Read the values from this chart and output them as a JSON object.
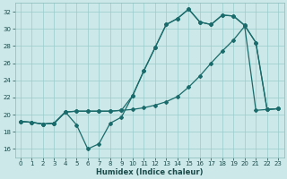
{
  "xlabel": "Humidex (Indice chaleur)",
  "bg_color": "#cce8e8",
  "grid_color": "#99cccc",
  "line_color": "#1a6b6b",
  "xlim": [
    -0.5,
    23.5
  ],
  "ylim": [
    15.0,
    33.0
  ],
  "yticks": [
    16,
    18,
    20,
    22,
    24,
    26,
    28,
    30,
    32
  ],
  "xticks": [
    0,
    1,
    2,
    3,
    4,
    5,
    6,
    7,
    8,
    9,
    10,
    11,
    12,
    13,
    14,
    15,
    16,
    17,
    18,
    19,
    20,
    21,
    22,
    23
  ],
  "line1_x": [
    0,
    1,
    2,
    3,
    4,
    5,
    6,
    7,
    8,
    9,
    10,
    11,
    12,
    13,
    14,
    15,
    16,
    17,
    18,
    19,
    20,
    21,
    22,
    23
  ],
  "line1_y": [
    19.2,
    19.1,
    18.9,
    19.0,
    20.3,
    18.8,
    16.0,
    16.6,
    19.0,
    19.7,
    22.2,
    25.1,
    27.8,
    30.5,
    31.2,
    32.3,
    30.8,
    30.5,
    31.6,
    31.5,
    30.4,
    28.4,
    20.6,
    20.7
  ],
  "line2_x": [
    0,
    1,
    2,
    3,
    4,
    5,
    6,
    7,
    8,
    9,
    10,
    11,
    12,
    13,
    14,
    15,
    16,
    17,
    18,
    19,
    20,
    21,
    22,
    23
  ],
  "line2_y": [
    19.2,
    19.1,
    18.9,
    19.0,
    20.3,
    20.4,
    20.4,
    20.4,
    20.4,
    20.5,
    20.6,
    20.8,
    21.1,
    21.5,
    22.1,
    23.2,
    24.5,
    26.0,
    27.4,
    28.7,
    30.3,
    20.5,
    20.6,
    20.7
  ],
  "line3_x": [
    0,
    1,
    2,
    3,
    4,
    5,
    6,
    7,
    8,
    9,
    10,
    11,
    12,
    13,
    14,
    15,
    16,
    17,
    18,
    19,
    20,
    21,
    22,
    23
  ],
  "line3_y": [
    19.2,
    19.1,
    18.9,
    19.0,
    20.3,
    20.4,
    20.4,
    20.4,
    20.4,
    20.5,
    22.2,
    25.1,
    27.8,
    30.5,
    31.2,
    32.3,
    30.8,
    30.5,
    31.6,
    31.5,
    30.4,
    28.4,
    20.6,
    20.7
  ]
}
